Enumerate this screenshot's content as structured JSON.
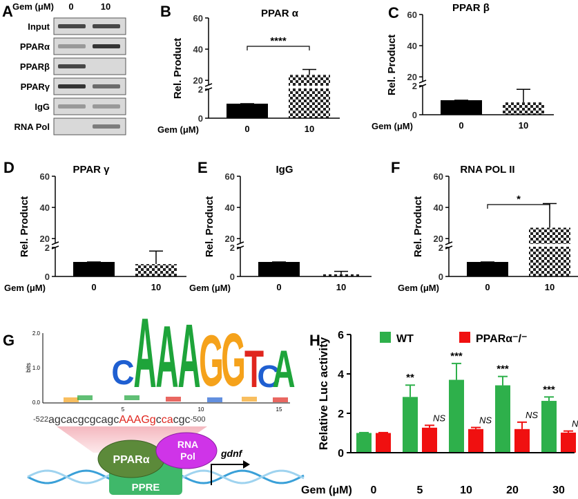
{
  "panel_a": {
    "label": "A",
    "header": "Gem (μM)",
    "columns": [
      "0",
      "10"
    ],
    "rows": [
      "Input",
      "PPARα",
      "PPARβ",
      "PPARγ",
      "IgG",
      "RNA Pol"
    ]
  },
  "chart_data": [
    {
      "type": "broken_bar",
      "panel": "B",
      "title": "PPAR α",
      "ylabel": "Rel. Product",
      "xlabel": "Gem (μM)",
      "categories": [
        "0",
        "10"
      ],
      "values": [
        1,
        23.5
      ],
      "errors": [
        0,
        3.5
      ],
      "fills": [
        "solid",
        "checker"
      ],
      "color": "#000000",
      "ylim": [
        0,
        60
      ],
      "ybreak": [
        2,
        17
      ],
      "yticks": [
        0,
        2,
        20,
        40,
        60
      ],
      "annotation": "****"
    },
    {
      "type": "broken_bar",
      "panel": "C",
      "title": "PPAR β",
      "ylabel": "Rel. Product",
      "xlabel": "Gem (μM)",
      "categories": [
        "0",
        "10"
      ],
      "values": [
        1,
        0.85
      ],
      "errors": [
        0,
        0.9
      ],
      "fills": [
        "solid",
        "checker"
      ],
      "color": "#000000",
      "ylim": [
        0,
        60
      ],
      "ybreak": [
        2,
        17
      ],
      "yticks": [
        0,
        2,
        20,
        40,
        60
      ]
    },
    {
      "type": "broken_bar",
      "panel": "D",
      "title": "PPAR γ",
      "ylabel": "Rel. Product",
      "xlabel": "Gem (μM)",
      "categories": [
        "0",
        "10"
      ],
      "values": [
        1,
        0.85
      ],
      "errors": [
        0,
        0.9
      ],
      "fills": [
        "solid",
        "checker"
      ],
      "color": "#000000",
      "ylim": [
        0,
        60
      ],
      "ybreak": [
        2,
        17
      ],
      "yticks": [
        0,
        2,
        20,
        40,
        60
      ]
    },
    {
      "type": "broken_bar",
      "panel": "E",
      "title": "IgG",
      "ylabel": "Rel. Product",
      "xlabel": "Gem (μM)",
      "categories": [
        "0",
        "10"
      ],
      "values": [
        1,
        0.15
      ],
      "errors": [
        0,
        0.2
      ],
      "fills": [
        "solid",
        "checker"
      ],
      "color": "#000000",
      "ylim": [
        0,
        60
      ],
      "ybreak": [
        2,
        17
      ],
      "yticks": [
        0,
        2,
        20,
        40,
        60
      ]
    },
    {
      "type": "broken_bar",
      "panel": "F",
      "title": "RNA POL II",
      "ylabel": "Rel. Product",
      "xlabel": "Gem (μM)",
      "categories": [
        "0",
        "10"
      ],
      "values": [
        1,
        27
      ],
      "errors": [
        0,
        15.5
      ],
      "fills": [
        "solid",
        "checker"
      ],
      "color": "#000000",
      "ylim": [
        0,
        60
      ],
      "ybreak": [
        2,
        17
      ],
      "yticks": [
        0,
        2,
        20,
        40,
        60
      ],
      "annotation": "*"
    },
    {
      "type": "grouped_bar",
      "panel": "H",
      "ylabel": "Relative Luc activity",
      "xlabel": "Gem (μM)",
      "categories": [
        "0",
        "5",
        "10",
        "20",
        "30"
      ],
      "ylim": [
        0,
        6
      ],
      "yticks": [
        0,
        2,
        4,
        6
      ],
      "legend": "top",
      "series": [
        {
          "name": "WT",
          "color": "#2eb04b",
          "values": [
            1,
            2.83,
            3.7,
            3.42,
            2.63
          ],
          "errors": [
            0.02,
            0.6,
            0.83,
            0.45,
            0.2
          ],
          "annotations": [
            null,
            "**",
            "***",
            "***",
            "***"
          ]
        },
        {
          "name": "PPARα⁻/⁻",
          "color": "#f01010",
          "values": [
            1,
            1.27,
            1.2,
            1.2,
            1.02
          ],
          "errors": [
            0.02,
            0.12,
            0.08,
            0.35,
            0.08
          ],
          "annotations": [
            null,
            "NS",
            "NS",
            "NS",
            "NS"
          ]
        }
      ]
    }
  ],
  "panel_g": {
    "label": "G",
    "logo": {
      "ylabel": "bits",
      "yticks": [
        "2.0",
        "1.0",
        "0.0"
      ],
      "xticks": [
        "5",
        "10",
        "15"
      ],
      "letters": [
        "C",
        "A",
        "A",
        "A",
        "G",
        "G",
        "T",
        "C",
        "A"
      ]
    },
    "sequence": {
      "start": "-522",
      "parts": [
        "agcacgcgcagc",
        "AAAGg",
        "c",
        "ca",
        "cgc"
      ],
      "end": "-500"
    },
    "protein": "PPARα",
    "polymerase": [
      "RNA",
      "Pol"
    ],
    "element": "PPRE",
    "gene": "gdnf"
  }
}
